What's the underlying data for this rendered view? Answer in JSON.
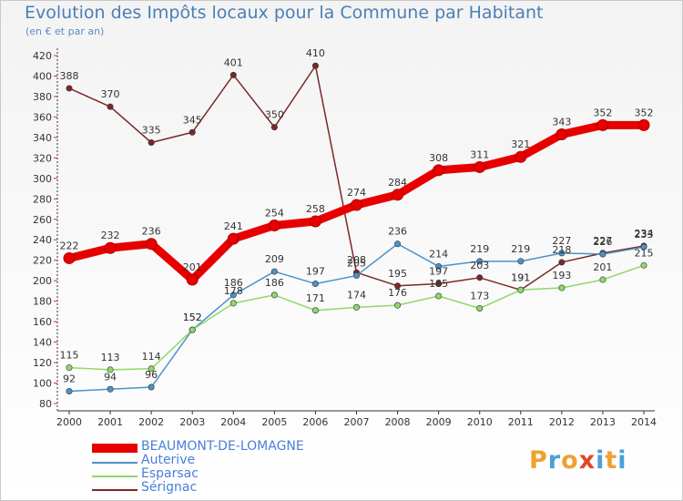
{
  "header": {
    "title": "Evolution des Impôts locaux pour la Commune par Habitant",
    "subtitle": "(en € et par an)"
  },
  "logo": {
    "text": "Proxiti"
  },
  "chart_data": {
    "type": "line",
    "title": "Evolution des Impôts locaux pour la Commune par Habitant",
    "subtitle": "(en € et par an)",
    "x": [
      "2000",
      "2001",
      "2002",
      "2003",
      "2004",
      "2005",
      "2006",
      "2007",
      "2008",
      "2009",
      "2010",
      "2011",
      "2012",
      "2013",
      "2014"
    ],
    "ylim": [
      80,
      420
    ],
    "yticks": [
      80,
      100,
      120,
      140,
      160,
      180,
      200,
      220,
      240,
      260,
      280,
      300,
      320,
      340,
      360,
      380,
      400,
      420
    ],
    "grid": false,
    "legend_position": "bottom-left",
    "series": [
      {
        "name": "BEAUMONT-DE-LOMAGNE",
        "color": "#e60000",
        "values": [
          222,
          232,
          236,
          201,
          241,
          254,
          258,
          274,
          284,
          308,
          311,
          321,
          343,
          352,
          352
        ],
        "labels": [
          "222",
          "232",
          "236",
          "201",
          "241",
          "254",
          "258",
          "274",
          "284",
          "308",
          "311",
          "321",
          "343",
          "352",
          "352"
        ]
      },
      {
        "name": "Auterive",
        "color": "#4b93c8",
        "values": [
          92,
          94,
          96,
          152,
          186,
          209,
          197,
          205,
          236,
          214,
          219,
          219,
          227,
          226,
          233
        ],
        "labels": [
          "92",
          "94",
          "96",
          "152",
          "186",
          "209",
          "197",
          "205",
          "236",
          "214",
          "219",
          "219",
          "227",
          "226",
          "233"
        ]
      },
      {
        "name": "Esparsac",
        "color": "#8fd86a",
        "values": [
          115,
          113,
          114,
          152,
          178,
          186,
          171,
          174,
          176,
          185,
          173,
          191,
          193,
          201,
          215
        ],
        "labels": [
          "115",
          "113",
          "114",
          "152",
          "178",
          "186",
          "171",
          "174",
          "176",
          "185",
          "173",
          "191",
          "193",
          "201",
          "215"
        ]
      },
      {
        "name": "Sérignac",
        "color": "#7a2828",
        "values": [
          388,
          370,
          335,
          345,
          401,
          350,
          410,
          208,
          195,
          197,
          203,
          191,
          218,
          227,
          234
        ],
        "labels": [
          "388",
          "370",
          "335",
          "345",
          "401",
          "350",
          "410",
          "208",
          "195",
          "197",
          "203",
          "191",
          "218",
          "227",
          "234"
        ]
      }
    ]
  }
}
